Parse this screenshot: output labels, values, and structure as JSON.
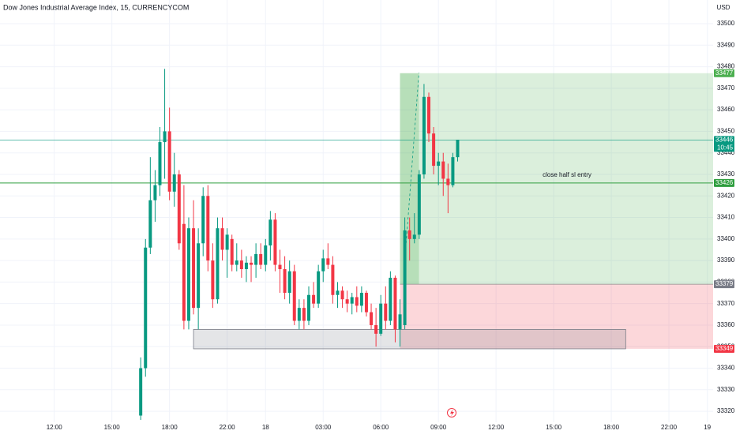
{
  "chart_data": {
    "type": "candlestick",
    "title": "Dow Jones Industrial Average Index, 15, CURRENCYCOM",
    "currency": "USD",
    "up_color": "#089981",
    "down_color": "#f23645",
    "grid": true,
    "x": [
      0,
      1,
      2,
      3,
      4,
      5,
      6,
      7,
      8,
      9,
      10,
      11,
      12,
      13,
      14,
      15,
      16,
      17,
      18,
      19,
      20,
      21,
      22,
      23,
      24,
      25,
      26,
      27,
      28,
      29,
      30,
      31,
      32,
      33,
      34,
      35,
      36,
      37,
      38,
      39,
      40,
      41,
      42,
      43,
      44,
      45,
      46,
      47,
      48,
      49,
      50,
      51,
      52,
      53,
      54,
      55,
      56,
      57,
      58,
      59,
      60,
      61,
      62,
      63,
      64,
      65,
      66
    ],
    "open": [
      33318,
      33340,
      33396,
      33418,
      33425,
      33445,
      33450,
      33422,
      33430,
      33407,
      33362,
      33405,
      33368,
      33398,
      33420,
      33390,
      33372,
      33405,
      33395,
      33400,
      33388,
      33390,
      33386,
      33389,
      33388,
      33393,
      33388,
      33397,
      33409,
      33388,
      33386,
      33375,
      33385,
      33362,
      33368,
      33362,
      33374,
      33370,
      33385,
      33391,
      33388,
      33374,
      33376,
      33372,
      33370,
      33373,
      33369,
      33375,
      33366,
      33360,
      33356,
      33370,
      33362,
      33382,
      33358,
      33360,
      33404,
      33400,
      33402,
      33430,
      33466,
      33449,
      33434,
      33436,
      33428,
      33425,
      33438
    ],
    "high": [
      33345,
      33400,
      33438,
      33432,
      33452,
      33479,
      33461,
      33440,
      33432,
      33425,
      33410,
      33418,
      33405,
      33424,
      33425,
      33398,
      33410,
      33410,
      33405,
      33402,
      33398,
      33395,
      33392,
      33392,
      33398,
      33398,
      33400,
      33413,
      33412,
      33395,
      33392,
      33390,
      33388,
      33372,
      33372,
      33378,
      33380,
      33388,
      33395,
      33398,
      33392,
      33380,
      33378,
      33376,
      33375,
      33378,
      33378,
      33376,
      33370,
      33368,
      33374,
      33378,
      33385,
      33383,
      33372,
      33410,
      33410,
      33412,
      33432,
      33472,
      33468,
      33452,
      33440,
      33440,
      33435,
      33440,
      33446
    ],
    "low": [
      33316,
      33336,
      33393,
      33408,
      33420,
      33428,
      33418,
      33415,
      33395,
      33358,
      33358,
      33365,
      33358,
      33392,
      33385,
      33368,
      33370,
      33390,
      33382,
      33385,
      33385,
      33382,
      33380,
      33380,
      33382,
      33386,
      33385,
      33390,
      33385,
      33375,
      33372,
      33370,
      33360,
      33358,
      33358,
      33360,
      33368,
      33368,
      33380,
      33386,
      33370,
      33368,
      33368,
      33366,
      33365,
      33366,
      33366,
      33364,
      33358,
      33350,
      33355,
      33358,
      33360,
      33352,
      33350,
      33358,
      33390,
      33398,
      33400,
      33428,
      33445,
      33430,
      33425,
      33420,
      33412,
      33424,
      33436
    ],
    "close": [
      33340,
      33396,
      33418,
      33425,
      33445,
      33450,
      33422,
      33430,
      33398,
      33362,
      33405,
      33368,
      33398,
      33420,
      33390,
      33372,
      33405,
      33395,
      33402,
      33388,
      33390,
      33386,
      33389,
      33388,
      33393,
      33388,
      33397,
      33409,
      33388,
      33386,
      33375,
      33385,
      33362,
      33368,
      33362,
      33374,
      33370,
      33385,
      33391,
      33388,
      33374,
      33376,
      33372,
      33370,
      33373,
      33369,
      33375,
      33366,
      33360,
      33356,
      33370,
      33362,
      33382,
      33358,
      33365,
      33404,
      33400,
      33402,
      33430,
      33466,
      33449,
      33434,
      33436,
      33428,
      33425,
      33438,
      33446
    ],
    "xlim": [
      -29.3,
      119.2
    ],
    "ylim": [
      33313.8,
      33511
    ],
    "xticks": [
      {
        "value": -18,
        "label": "12:00"
      },
      {
        "value": -6,
        "label": "15:00"
      },
      {
        "value": 6,
        "label": "18:00"
      },
      {
        "value": 18,
        "label": "22:00"
      },
      {
        "value": 26,
        "label": "18"
      },
      {
        "value": 38,
        "label": "03:00"
      },
      {
        "value": 50,
        "label": "06:00"
      },
      {
        "value": 62,
        "label": "09:00"
      },
      {
        "value": 74,
        "label": "12:00"
      },
      {
        "value": 86,
        "label": "15:00"
      },
      {
        "value": 98,
        "label": "18:00"
      },
      {
        "value": 110,
        "label": "22:00"
      },
      {
        "value": 118,
        "label": "19"
      }
    ],
    "yticks": [
      33320,
      33330,
      33340,
      33350,
      33360,
      33370,
      33380,
      33390,
      33400,
      33410,
      33420,
      33430,
      33440,
      33450,
      33460,
      33470,
      33480,
      33490,
      33500
    ],
    "price_lines": [
      {
        "value": 33446,
        "color": "#089981"
      },
      {
        "value": 33426,
        "color": "#2e9e3e"
      }
    ],
    "countdown": "10:45",
    "annotation": "close half sl entry",
    "position": {
      "start": 54,
      "target": 33477,
      "entry": 33379,
      "stop": 33349
    },
    "zone": {
      "start": 11,
      "end": 101,
      "top": 33358,
      "bottom": 33349
    }
  }
}
